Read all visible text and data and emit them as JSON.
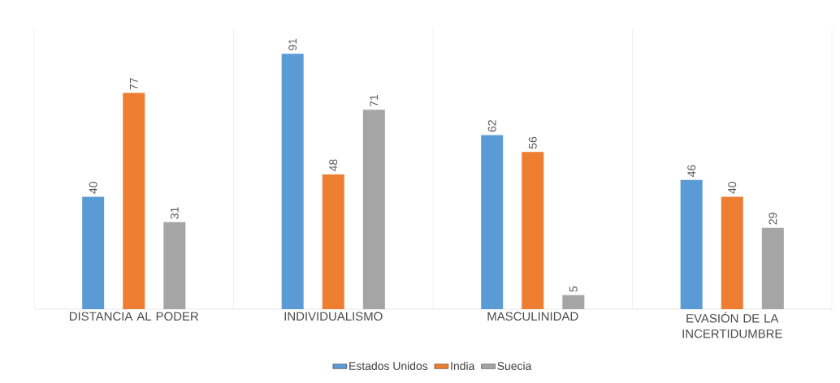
{
  "chart_data": {
    "type": "bar",
    "categories": [
      "DISTANCIA AL PODER",
      "INDIVIDUALISMO",
      "MASCULINIDAD",
      "EVASIÓN DE LA INCERTIDUMBRE"
    ],
    "series": [
      {
        "name": "Estados Unidos",
        "color": "#5b9bd5",
        "values": [
          40,
          91,
          62,
          46
        ]
      },
      {
        "name": "India",
        "color": "#ed7d31",
        "values": [
          77,
          48,
          56,
          40
        ]
      },
      {
        "name": "Suecia",
        "color": "#a5a5a5",
        "values": [
          31,
          71,
          5,
          29
        ]
      }
    ],
    "ylim": [
      0,
      100
    ],
    "data_labels": true,
    "grid": "x",
    "legend": "bottom"
  }
}
